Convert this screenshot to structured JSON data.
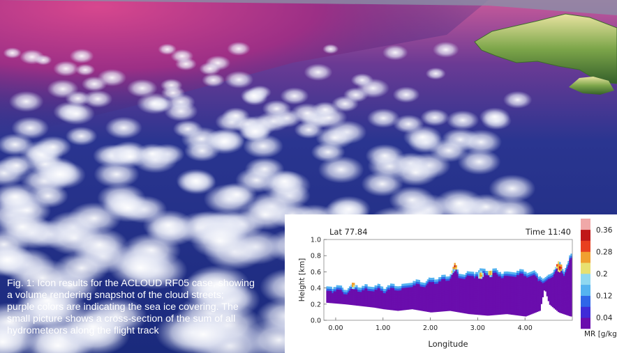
{
  "caption": {
    "lines": [
      "Fig. 1: Icon results for the ACLOUD RF05 case, showing",
      "a volume rendering snapshot of the cloud streets;",
      "purple colors are indicating the sea ice covering. The",
      "small picture shows a cross-section of the sum of all",
      "hydrometeors along the flight track"
    ]
  },
  "colors": {
    "sea": "#1c2b80",
    "sea_ice": "#b0307a",
    "cloud": "#ffffff",
    "terrain": "#7da64a"
  },
  "chart_data": {
    "type": "heatmap",
    "title_left": "Lat 77.84",
    "title_right": "Time 11:40",
    "xlabel": "Longitude",
    "ylabel": "Height [km]",
    "xlim": [
      -0.25,
      5.0
    ],
    "ylim": [
      0.0,
      1.0
    ],
    "xticks": [
      "0.00",
      "1.00",
      "2.00",
      "3.00",
      "4.00"
    ],
    "xtick_values": [
      0,
      1,
      2,
      3,
      4
    ],
    "yticks": [
      "0.0",
      "0.2",
      "0.4",
      "0.6",
      "0.8",
      "1.0"
    ],
    "ytick_values": [
      0.0,
      0.2,
      0.4,
      0.6,
      0.8,
      1.0
    ],
    "colorbar": {
      "label": "MR [g/kg]",
      "ticks": [
        "0.36",
        "0.28",
        "0.2",
        "0.12",
        "0.04"
      ],
      "tick_values": [
        0.36,
        0.28,
        0.2,
        0.12,
        0.04
      ],
      "range": [
        0.0,
        0.4
      ],
      "colors": [
        "#6a0dad",
        "#3f2bd8",
        "#2f66e8",
        "#55b3f0",
        "#8fd8f0",
        "#e8e070",
        "#f0a030",
        "#e84020",
        "#c01818",
        "#f0a8a8"
      ]
    },
    "cloud_top_km": [
      [
        -0.2,
        0.4
      ],
      [
        0.0,
        0.41
      ],
      [
        0.2,
        0.38
      ],
      [
        0.35,
        0.44
      ],
      [
        0.5,
        0.4
      ],
      [
        0.8,
        0.42
      ],
      [
        1.0,
        0.4
      ],
      [
        1.2,
        0.43
      ],
      [
        1.4,
        0.42
      ],
      [
        1.6,
        0.48
      ],
      [
        1.8,
        0.46
      ],
      [
        2.0,
        0.5
      ],
      [
        2.2,
        0.52
      ],
      [
        2.4,
        0.55
      ],
      [
        2.5,
        0.68
      ],
      [
        2.6,
        0.56
      ],
      [
        2.8,
        0.58
      ],
      [
        3.0,
        0.6
      ],
      [
        3.2,
        0.62
      ],
      [
        3.4,
        0.6
      ],
      [
        3.6,
        0.58
      ],
      [
        3.8,
        0.6
      ],
      [
        4.0,
        0.6
      ],
      [
        4.2,
        0.58
      ],
      [
        4.4,
        0.5
      ],
      [
        4.55,
        0.58
      ],
      [
        4.7,
        0.72
      ],
      [
        4.8,
        0.6
      ],
      [
        4.95,
        0.8
      ]
    ],
    "cloud_base_km": [
      [
        -0.2,
        0.22
      ],
      [
        0.2,
        0.2
      ],
      [
        0.5,
        0.18
      ],
      [
        0.8,
        0.16
      ],
      [
        1.0,
        0.14
      ],
      [
        1.3,
        0.12
      ],
      [
        1.6,
        0.14
      ],
      [
        2.0,
        0.1
      ],
      [
        2.4,
        0.12
      ],
      [
        2.8,
        0.08
      ],
      [
        3.2,
        0.06
      ],
      [
        3.6,
        0.08
      ],
      [
        4.0,
        0.05
      ],
      [
        4.3,
        0.12
      ],
      [
        4.4,
        0.4
      ],
      [
        4.5,
        0.2
      ],
      [
        4.7,
        0.1
      ],
      [
        4.95,
        0.05
      ]
    ],
    "hotspots": [
      {
        "x": 0.35,
        "y": 0.43,
        "mr": 0.3
      },
      {
        "x": 2.42,
        "y": 0.6,
        "mr": 0.28
      },
      {
        "x": 2.5,
        "y": 0.66,
        "mr": 0.36
      },
      {
        "x": 3.05,
        "y": 0.55,
        "mr": 0.3
      },
      {
        "x": 3.25,
        "y": 0.58,
        "mr": 0.3
      },
      {
        "x": 4.65,
        "y": 0.68,
        "mr": 0.36
      },
      {
        "x": 4.72,
        "y": 0.64,
        "mr": 0.38
      }
    ]
  }
}
